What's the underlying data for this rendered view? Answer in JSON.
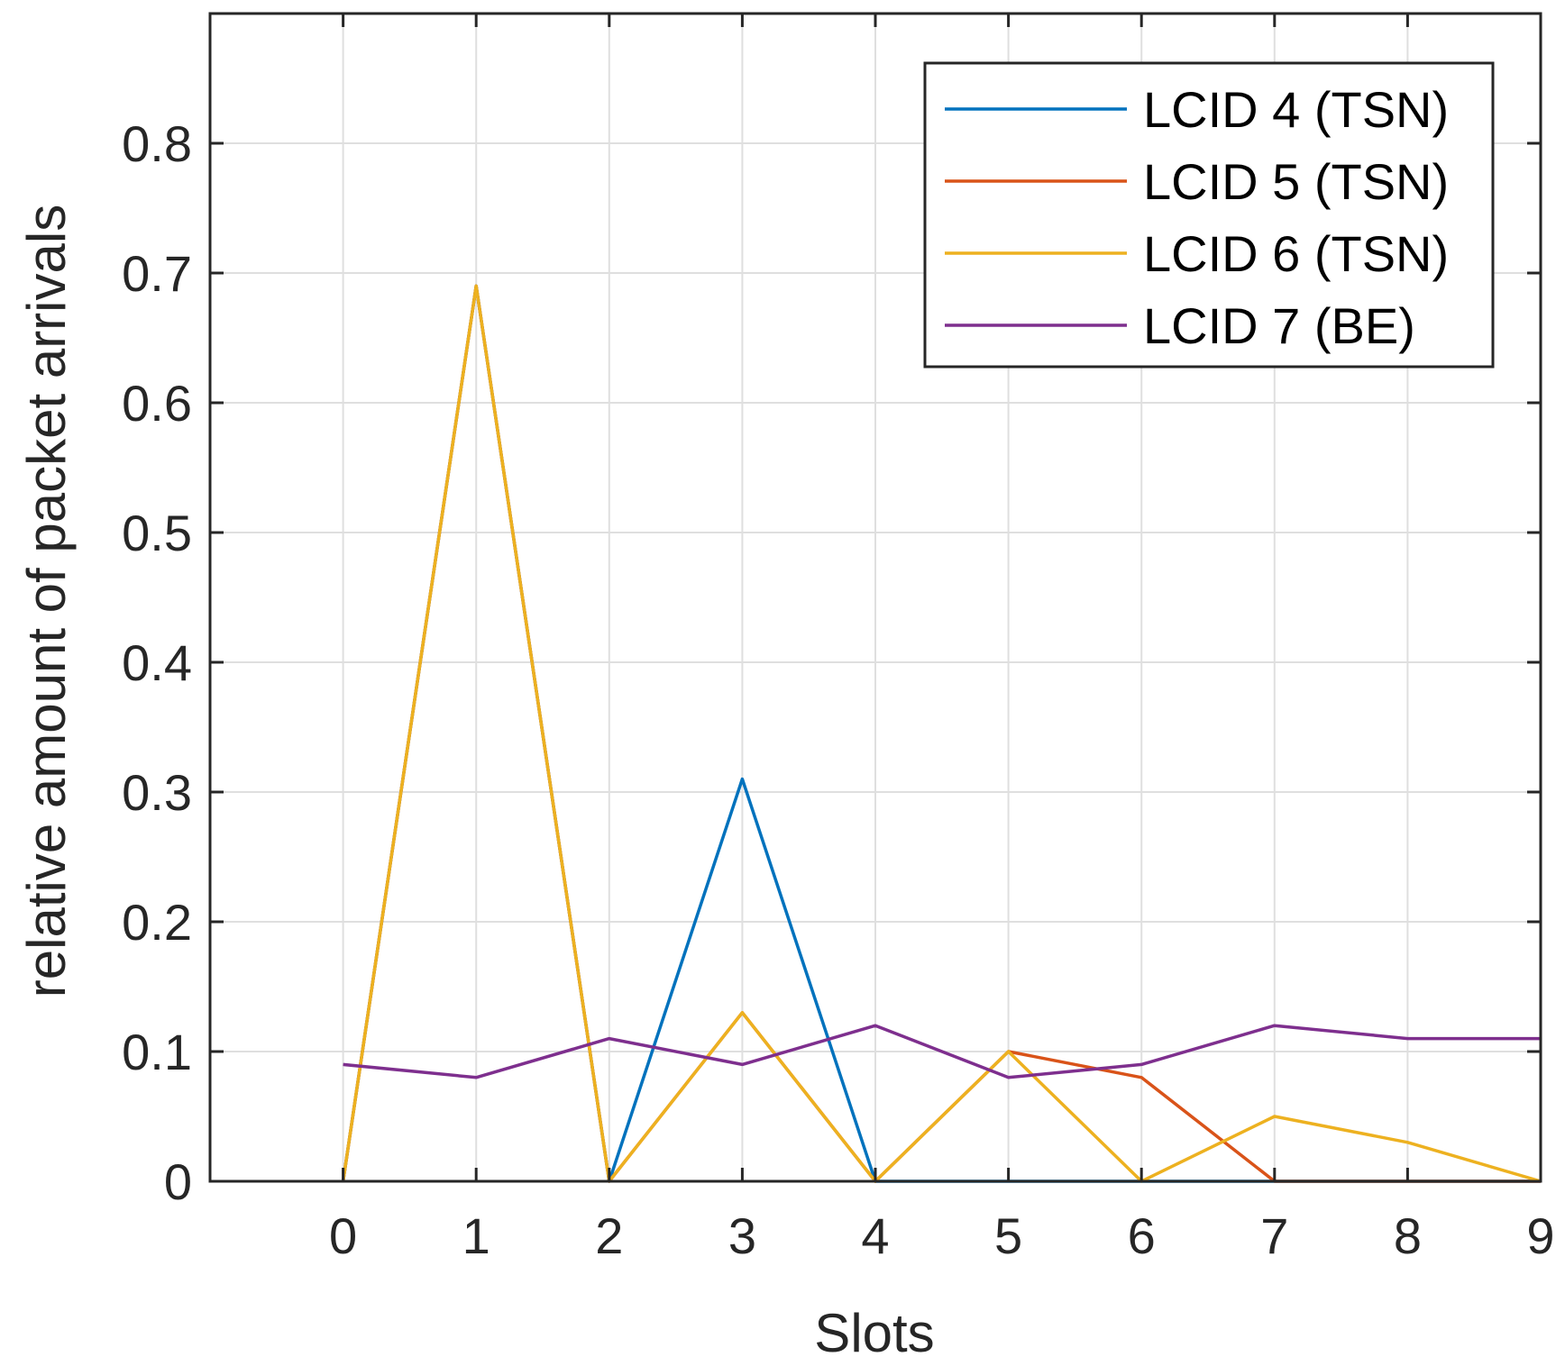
{
  "chart_data": {
    "type": "line",
    "title": "",
    "xlabel": "Slots",
    "ylabel": "relative amount of packet arrivals",
    "x": [
      0,
      1,
      2,
      3,
      4,
      5,
      6,
      7,
      8,
      9
    ],
    "xlim": [
      -1,
      9
    ],
    "ylim": [
      0,
      0.9
    ],
    "xticks": [
      0,
      1,
      2,
      3,
      4,
      5,
      6,
      7,
      8,
      9
    ],
    "yticks": [
      0,
      0.1,
      0.2,
      0.3,
      0.4,
      0.5,
      0.6,
      0.7,
      0.8
    ],
    "xtick_labels": [
      "0",
      "1",
      "2",
      "3",
      "4",
      "5",
      "6",
      "7",
      "8",
      "9"
    ],
    "ytick_labels": [
      "0",
      "0.1",
      "0.2",
      "0.3",
      "0.4",
      "0.5",
      "0.6",
      "0.7",
      "0.8"
    ],
    "grid": true,
    "legend_position": "top-right",
    "series": [
      {
        "name": "LCID 4 (TSN)",
        "color": "#0072BD",
        "values": [
          0,
          0.69,
          0,
          0.31,
          0,
          0,
          0,
          0,
          0,
          0
        ]
      },
      {
        "name": "LCID 5 (TSN)",
        "color": "#D95319",
        "values": [
          0,
          0.69,
          0,
          0.13,
          0,
          0.1,
          0.08,
          0,
          0,
          0
        ]
      },
      {
        "name": "LCID 6 (TSN)",
        "color": "#EDB120",
        "values": [
          0,
          0.69,
          0,
          0.13,
          0,
          0.1,
          0,
          0.05,
          0.03,
          0
        ]
      },
      {
        "name": "LCID 7 (BE)",
        "color": "#7E2F8E",
        "values": [
          0.09,
          0.08,
          0.11,
          0.09,
          0.12,
          0.08,
          0.09,
          0.12,
          0.11,
          0.11
        ]
      }
    ]
  }
}
